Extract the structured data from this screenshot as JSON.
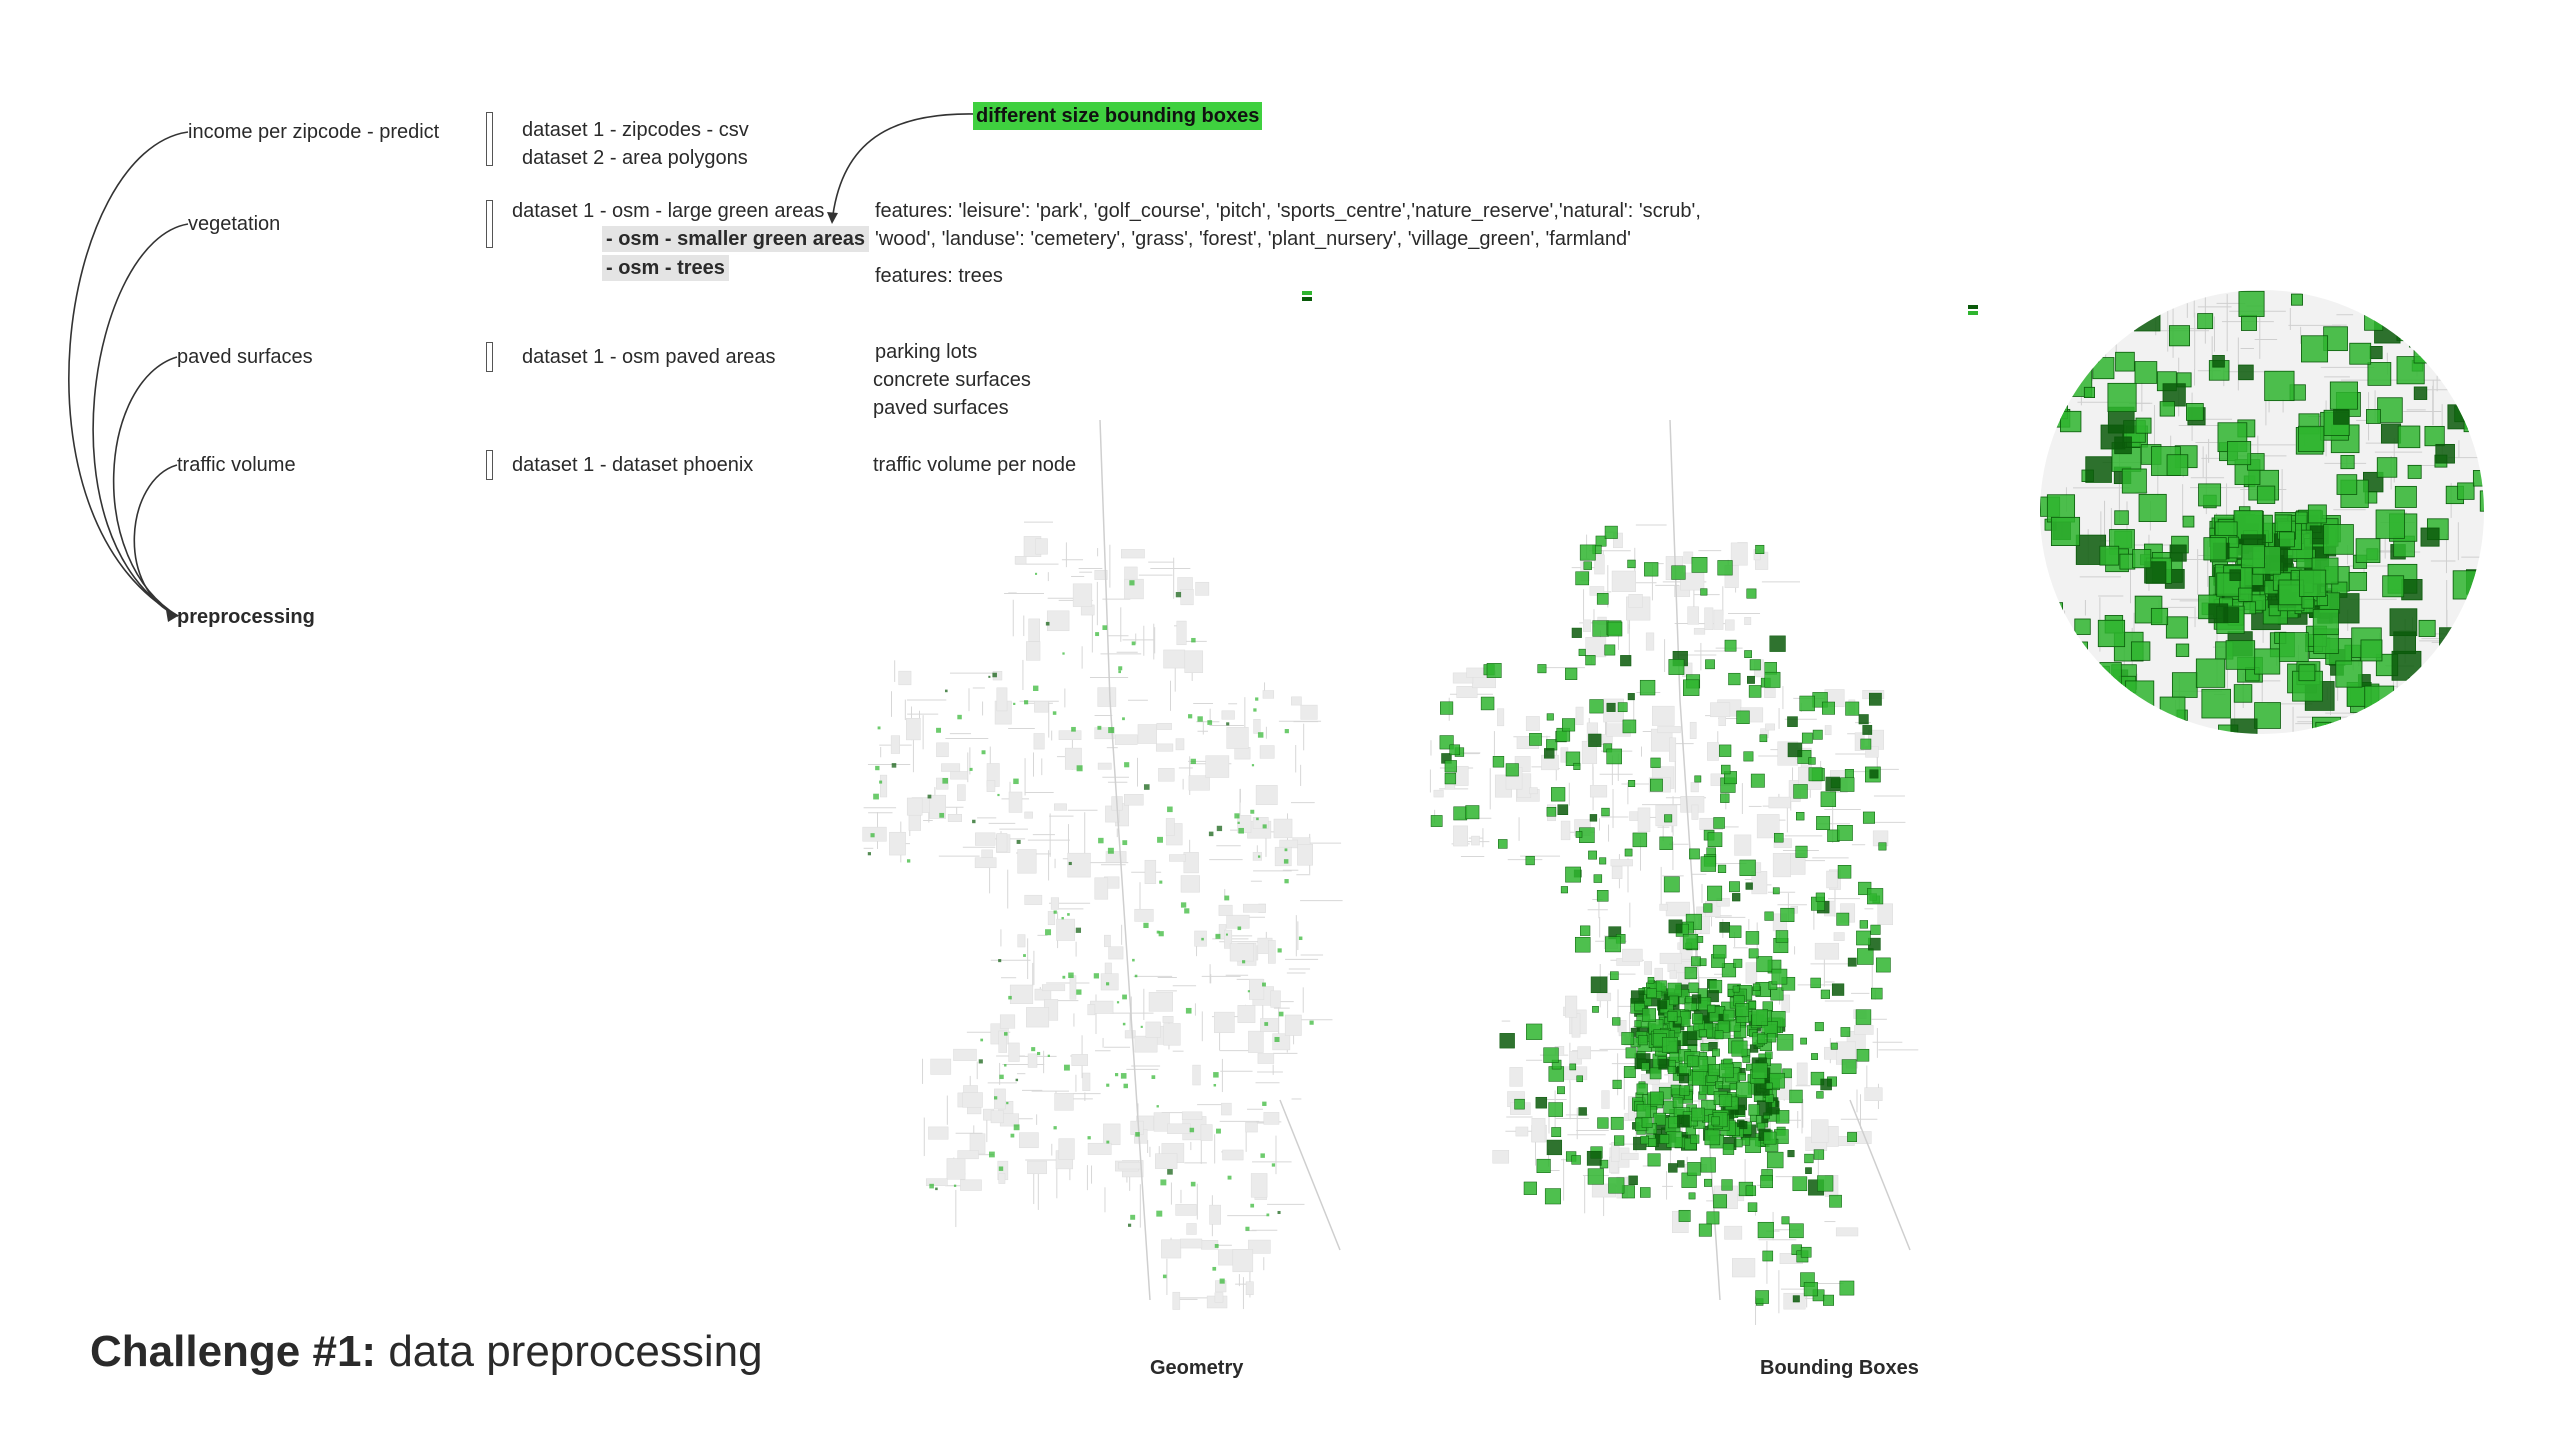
{
  "categories": [
    {
      "label": "income per zipcode - predict",
      "datasets": [
        "dataset 1 - zipcodes - csv",
        "dataset 2 - area polygons"
      ]
    },
    {
      "label": "vegetation",
      "datasets": [
        "dataset 1 - osm - large green areas"
      ],
      "sub_items": [
        "- osm - smaller green areas",
        "- osm - trees"
      ]
    },
    {
      "label": "paved surfaces",
      "datasets": [
        "dataset 1 - osm paved areas"
      ]
    },
    {
      "label": "traffic volume",
      "datasets": [
        "dataset 1 - dataset phoenix"
      ]
    }
  ],
  "features": {
    "vegetation": [
      "features: 'leisure': 'park', 'golf_course', 'pitch', 'sports_centre','nature_reserve','natural': 'scrub',",
      "'wood', 'landuse': 'cemetery', 'grass', 'forest', 'plant_nursery', 'village_green', 'farmland'",
      "features: trees"
    ],
    "paved": [
      "parking lots",
      "concrete surfaces",
      "paved surfaces"
    ],
    "traffic": [
      "traffic volume per node"
    ]
  },
  "target": "preprocessing",
  "callout": "different size bounding boxes",
  "title": {
    "bold": "Challenge #1:",
    "rest": "data preprocessing"
  },
  "map_labels": {
    "left": "Geometry",
    "right": "Bounding Boxes"
  },
  "colors": {
    "highlight_green": "#3fd03f",
    "map_green": "#2fb52f",
    "map_dark_green": "#0a5a0a",
    "road_gray": "#d7d7d7"
  }
}
